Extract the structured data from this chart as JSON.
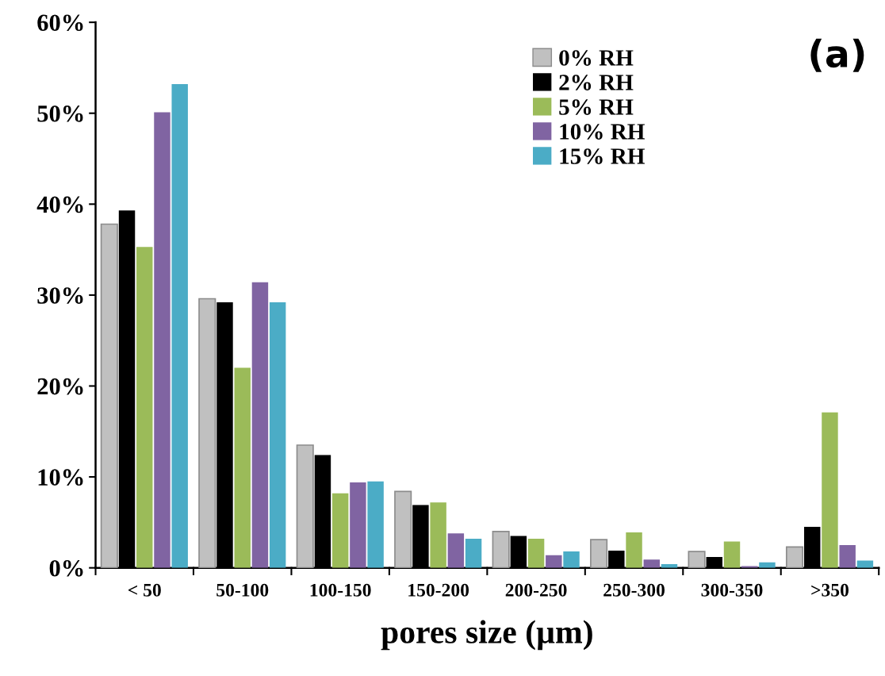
{
  "chart_data": {
    "type": "bar",
    "xlabel": "pores size (µm)",
    "categories": [
      "< 50",
      "50-100",
      "100-150",
      "150-200",
      "200-250",
      "250-300",
      "300-350",
      ">350"
    ],
    "series": [
      {
        "name": "0% RH",
        "color": "#c0c0c0",
        "values": [
          37.8,
          29.6,
          13.5,
          8.4,
          4.0,
          3.1,
          1.8,
          2.3
        ]
      },
      {
        "name": "2% RH",
        "color": "#000000",
        "values": [
          39.3,
          29.2,
          12.4,
          6.9,
          3.5,
          1.9,
          1.2,
          4.5
        ]
      },
      {
        "name": "5% RH",
        "color": "#9bbb59",
        "values": [
          35.3,
          22.0,
          8.2,
          7.2,
          3.2,
          3.9,
          2.9,
          17.1
        ]
      },
      {
        "name": "10% RH",
        "color": "#8064a2",
        "values": [
          50.1,
          31.4,
          9.4,
          3.8,
          1.4,
          0.9,
          0.2,
          2.5
        ]
      },
      {
        "name": "15% RH",
        "color": "#4bacc6",
        "values": [
          53.2,
          29.2,
          9.5,
          3.2,
          1.8,
          0.4,
          0.6,
          0.8
        ]
      }
    ],
    "ylim": [
      0,
      60
    ],
    "yticks": [
      {
        "value": 0,
        "label": "0%"
      },
      {
        "value": 10,
        "label": "10%"
      },
      {
        "value": 20,
        "label": "20%"
      },
      {
        "value": 30,
        "label": "30%"
      },
      {
        "value": 40,
        "label": "40%"
      },
      {
        "value": 50,
        "label": "50%"
      },
      {
        "value": 60,
        "label": "60%"
      }
    ],
    "annotations": [
      "(a)"
    ],
    "legend": "top right",
    "grid": false
  }
}
